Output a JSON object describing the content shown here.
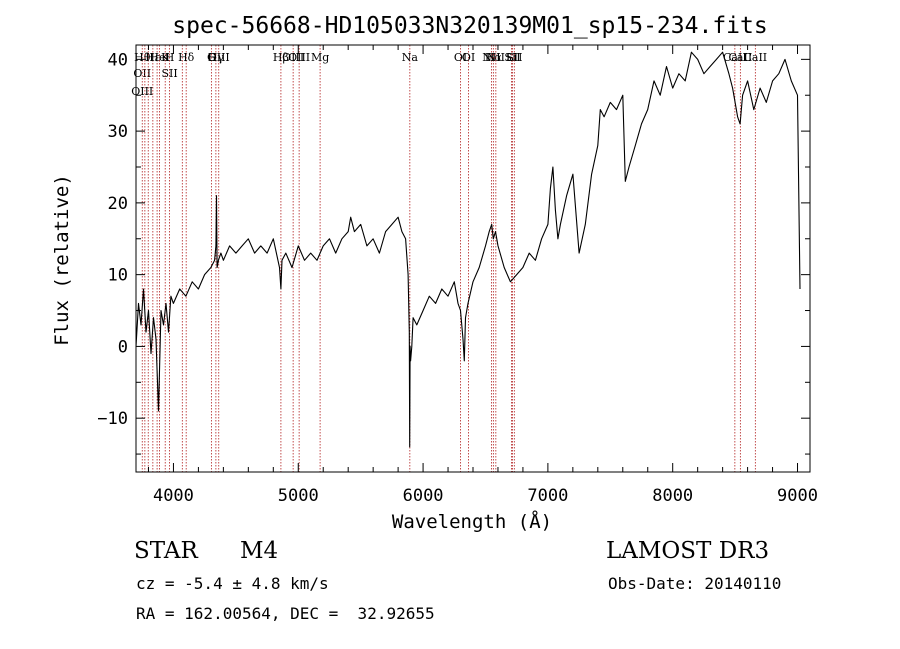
{
  "chart_data": {
    "type": "line",
    "title": "spec-56668-HD105033N320139M01_sp15-234.fits",
    "xlabel": "Wavelength (Å)",
    "ylabel": "Flux (relative)",
    "xlim": [
      3700,
      9100
    ],
    "ylim": [
      -17.5,
      42
    ],
    "xticks": [
      4000,
      5000,
      6000,
      7000,
      8000,
      9000
    ],
    "yticks": [
      -10,
      0,
      10,
      20,
      30,
      40
    ],
    "grid": false,
    "line_color": "#000000",
    "marker_color": "#b22222",
    "series": [
      {
        "x": [
          3700,
          3720,
          3740,
          3760,
          3780,
          3800,
          3820,
          3840,
          3860,
          3880,
          3900,
          3920,
          3940,
          3960,
          3980,
          4000,
          4050,
          4100,
          4150,
          4200,
          4250,
          4300,
          4330,
          4340,
          4345,
          4350,
          4360,
          4380,
          4400,
          4450,
          4500,
          4550,
          4600,
          4650,
          4700,
          4750,
          4800,
          4850,
          4861,
          4870,
          4900,
          4950,
          5000,
          5050,
          5100,
          5150,
          5200,
          5250,
          5300,
          5350,
          5400,
          5420,
          5450,
          5500,
          5550,
          5600,
          5650,
          5700,
          5750,
          5800,
          5830,
          5860,
          5880,
          5890,
          5893,
          5896,
          5900,
          5910,
          5920,
          5950,
          6000,
          6050,
          6100,
          6150,
          6200,
          6250,
          6280,
          6300,
          6320,
          6330,
          6340,
          6360,
          6400,
          6450,
          6500,
          6530,
          6550,
          6563,
          6580,
          6600,
          6650,
          6700,
          6750,
          6800,
          6850,
          6900,
          6950,
          7000,
          7020,
          7040,
          7060,
          7080,
          7100,
          7150,
          7200,
          7250,
          7300,
          7350,
          7400,
          7420,
          7450,
          7500,
          7550,
          7600,
          7620,
          7650,
          7700,
          7750,
          7800,
          7850,
          7900,
          7950,
          8000,
          8050,
          8100,
          8150,
          8200,
          8250,
          8300,
          8350,
          8400,
          8450,
          8480,
          8500,
          8520,
          8540,
          8560,
          8600,
          8650,
          8700,
          8750,
          8800,
          8850,
          8900,
          8950,
          9000,
          9020
        ],
        "y": [
          0,
          6,
          3,
          8,
          2,
          5,
          -1,
          4,
          1,
          -9,
          5,
          3,
          6,
          2,
          7,
          6,
          8,
          7,
          9,
          8,
          10,
          11,
          12,
          14,
          21,
          11,
          12,
          13,
          12,
          14,
          13,
          14,
          15,
          13,
          14,
          13,
          15,
          11,
          8,
          12,
          13,
          11,
          14,
          12,
          13,
          12,
          14,
          15,
          13,
          15,
          16,
          18,
          16,
          17,
          14,
          15,
          13,
          16,
          17,
          18,
          16,
          15,
          10,
          2,
          -14,
          0,
          -2,
          0,
          4,
          3,
          5,
          7,
          6,
          8,
          7,
          9,
          6,
          5,
          1,
          -2,
          4,
          6,
          9,
          11,
          14,
          16,
          17,
          15,
          16,
          14,
          11,
          9,
          10,
          11,
          13,
          12,
          15,
          17,
          22,
          25,
          19,
          15,
          17,
          21,
          24,
          13,
          17,
          24,
          28,
          33,
          32,
          34,
          33,
          35,
          23,
          25,
          28,
          31,
          33,
          37,
          35,
          39,
          36,
          38,
          37,
          41,
          40,
          38,
          39,
          40,
          41,
          38,
          36,
          34,
          32,
          31,
          35,
          37,
          33,
          36,
          34,
          37,
          38,
          40,
          37,
          35,
          8
        ]
      }
    ],
    "line_markers": [
      {
        "wave": 3750,
        "labels": [
          "Hθ",
          "OII",
          "OIII"
        ]
      },
      {
        "wave": 3771,
        "labels": []
      },
      {
        "wave": 3798,
        "labels": []
      },
      {
        "wave": 3835,
        "labels": [
          "Hε"
        ]
      },
      {
        "wave": 3869,
        "labels": []
      },
      {
        "wave": 3889,
        "labels": [
          "HeI"
        ]
      },
      {
        "wave": 3934,
        "labels": [
          "K"
        ]
      },
      {
        "wave": 3969,
        "labels": [
          "H",
          "SII"
        ]
      },
      {
        "wave": 4071,
        "labels": []
      },
      {
        "wave": 4102,
        "labels": [
          "Hδ"
        ]
      },
      {
        "wave": 4304,
        "labels": [
          "G"
        ]
      },
      {
        "wave": 4340,
        "labels": [
          "Hγ"
        ]
      },
      {
        "wave": 4363,
        "labels": [
          "OIII"
        ]
      },
      {
        "wave": 4861,
        "labels": [
          "Hβ"
        ]
      },
      {
        "wave": 4959,
        "labels": [
          "OIII"
        ]
      },
      {
        "wave": 5007,
        "labels": [
          "OIII"
        ]
      },
      {
        "wave": 5175,
        "labels": [
          "Mg"
        ]
      },
      {
        "wave": 5894,
        "labels": [
          "Na"
        ]
      },
      {
        "wave": 6300,
        "labels": [
          "OI"
        ]
      },
      {
        "wave": 6364,
        "labels": [
          "OI"
        ]
      },
      {
        "wave": 6548,
        "labels": [
          "NII"
        ]
      },
      {
        "wave": 6563,
        "labels": [
          "Hα"
        ]
      },
      {
        "wave": 6583,
        "labels": [
          "NII"
        ]
      },
      {
        "wave": 6708,
        "labels": [
          "Li"
        ]
      },
      {
        "wave": 6716,
        "labels": [
          "SII"
        ]
      },
      {
        "wave": 6731,
        "labels": [
          "SII"
        ]
      },
      {
        "wave": 8498,
        "labels": [
          "CaII"
        ]
      },
      {
        "wave": 8542,
        "labels": [
          "CaII"
        ]
      },
      {
        "wave": 8662,
        "labels": [
          "CaII"
        ]
      }
    ]
  },
  "info": {
    "class": "STAR",
    "subclass": "M4",
    "survey": "LAMOST DR3",
    "cz": "cz = -5.4 ± 4.8 km/s",
    "obs_date": "Obs-Date: 20140110",
    "radec": "RA = 162.00564, DEC =  32.92655"
  }
}
